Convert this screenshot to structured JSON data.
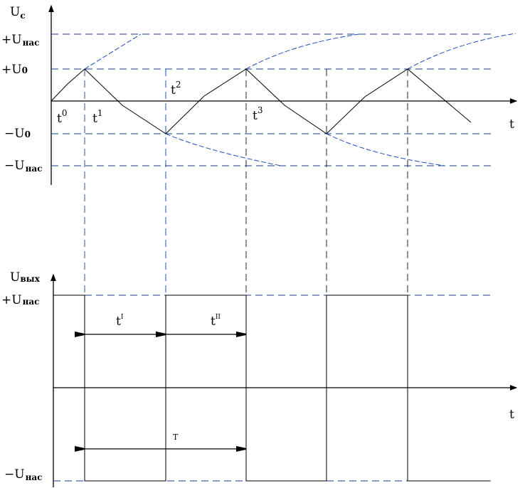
{
  "top_chart": {
    "y_axis_label": "U",
    "y_axis_sub": "c",
    "x_axis_label": "t",
    "levels": [
      {
        "sign": "+U",
        "sub": "нас"
      },
      {
        "sign": "+U",
        "sub": "0"
      },
      {
        "sign": "−U",
        "sub": "0"
      },
      {
        "sign": "−U",
        "sub": "нас"
      }
    ],
    "time_marks": [
      {
        "base": "t",
        "sup": "0"
      },
      {
        "base": "t",
        "sup": "1"
      },
      {
        "base": "t",
        "sup": "2"
      },
      {
        "base": "t",
        "sup": "3"
      }
    ]
  },
  "bottom_chart": {
    "y_axis_label": "U",
    "y_axis_sub": "вых",
    "x_axis_label": "t",
    "levels": [
      {
        "sign": "+U",
        "sub": "нас"
      },
      {
        "sign": "−U",
        "sub": "нас"
      }
    ],
    "intervals": [
      {
        "base": "t",
        "sup": "I"
      },
      {
        "base": "t",
        "sup": "II"
      },
      {
        "base": "T",
        "sup": ""
      }
    ]
  },
  "colors": {
    "guide_blue": "#1f4fbf",
    "guide_navy": "#1b3c8c",
    "line": "#000000"
  }
}
